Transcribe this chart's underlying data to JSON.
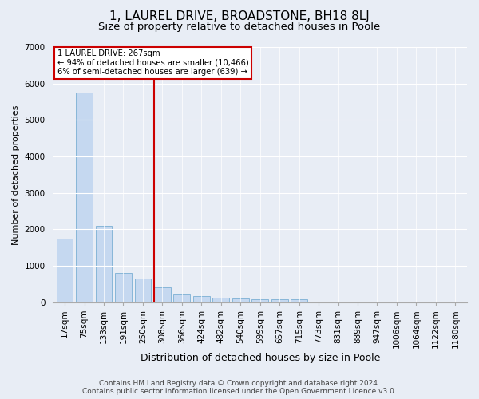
{
  "title": "1, LAUREL DRIVE, BROADSTONE, BH18 8LJ",
  "subtitle": "Size of property relative to detached houses in Poole",
  "xlabel": "Distribution of detached houses by size in Poole",
  "ylabel": "Number of detached properties",
  "categories": [
    "17sqm",
    "75sqm",
    "133sqm",
    "191sqm",
    "250sqm",
    "308sqm",
    "366sqm",
    "424sqm",
    "482sqm",
    "540sqm",
    "599sqm",
    "657sqm",
    "715sqm",
    "773sqm",
    "831sqm",
    "889sqm",
    "947sqm",
    "1006sqm",
    "1064sqm",
    "1122sqm",
    "1180sqm"
  ],
  "values": [
    1750,
    5750,
    2100,
    800,
    650,
    400,
    220,
    170,
    130,
    100,
    90,
    80,
    75,
    0,
    0,
    0,
    0,
    0,
    0,
    0,
    0
  ],
  "bar_color": "#c5d8f0",
  "bar_edgecolor": "#7bafd4",
  "vline_x": 4.58,
  "vline_color": "#cc0000",
  "annotation_text": "1 LAUREL DRIVE: 267sqm\n← 94% of detached houses are smaller (10,466)\n6% of semi-detached houses are larger (639) →",
  "annotation_box_color": "#ffffff",
  "annotation_box_edgecolor": "#cc0000",
  "ylim": [
    0,
    7000
  ],
  "yticks": [
    0,
    1000,
    2000,
    3000,
    4000,
    5000,
    6000,
    7000
  ],
  "bg_color": "#e8edf5",
  "plot_bg_color": "#e8edf5",
  "footer": "Contains HM Land Registry data © Crown copyright and database right 2024.\nContains public sector information licensed under the Open Government Licence v3.0.",
  "title_fontsize": 11,
  "subtitle_fontsize": 9.5,
  "xlabel_fontsize": 9,
  "ylabel_fontsize": 8,
  "tick_fontsize": 7.5,
  "footer_fontsize": 6.5
}
